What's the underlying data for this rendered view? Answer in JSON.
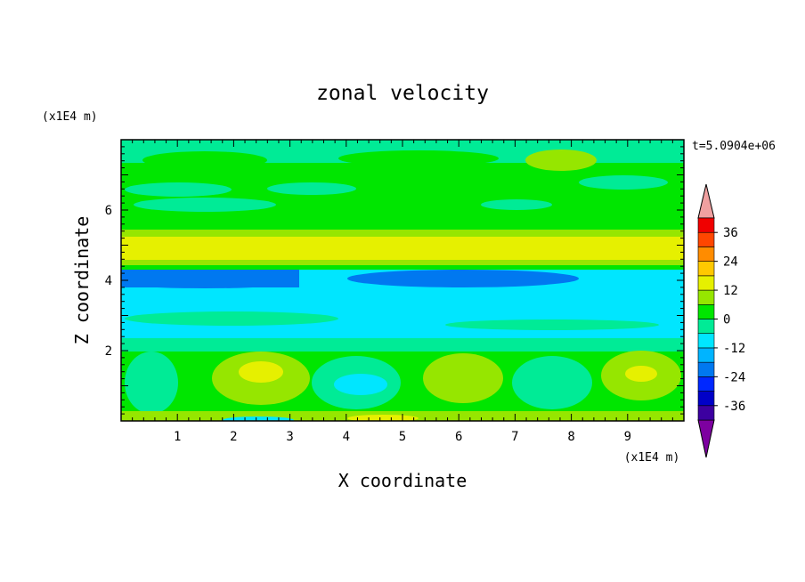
{
  "chart_data": {
    "type": "heatmap",
    "title": "zonal velocity",
    "xlabel": "X coordinate",
    "ylabel": "Z coordinate",
    "x_unit": "(x1E4 m)",
    "y_unit": "(x1E4 m)",
    "time_label": "t=5.0904e+06",
    "xlim": [
      0,
      10
    ],
    "ylim": [
      0,
      8
    ],
    "x_ticks": [
      "1",
      "2",
      "3",
      "4",
      "5",
      "6",
      "7",
      "8",
      "9"
    ],
    "y_ticks": [
      "2",
      "4",
      "6"
    ],
    "colorbar": {
      "levels": [
        -42,
        -36,
        -30,
        -24,
        -18,
        -12,
        -6,
        0,
        6,
        12,
        18,
        24,
        30,
        36,
        42
      ],
      "colors": [
        "#7d00a0",
        "#3c00a0",
        "#0000c8",
        "#0028ff",
        "#0078f0",
        "#00b4ff",
        "#00e6ff",
        "#00eb96",
        "#00e600",
        "#96e600",
        "#e6f000",
        "#ffc800",
        "#ff8c00",
        "#ff4600",
        "#f00000",
        "#f0a0a0"
      ],
      "labels": [
        "36",
        "24",
        "12",
        "0",
        "-12",
        "-24",
        "-36"
      ]
    },
    "field": {
      "description_ranges_y": [
        {
          "z": [
            0.0,
            0.1
          ],
          "value": 6
        },
        {
          "z": [
            0.1,
            2.0
          ],
          "value": 6
        },
        {
          "z": [
            2.0,
            4.3
          ],
          "value": -10
        },
        {
          "z": [
            4.3,
            5.4
          ],
          "value": 15
        },
        {
          "z": [
            5.4,
            8.0
          ],
          "value": 2
        }
      ]
    }
  }
}
